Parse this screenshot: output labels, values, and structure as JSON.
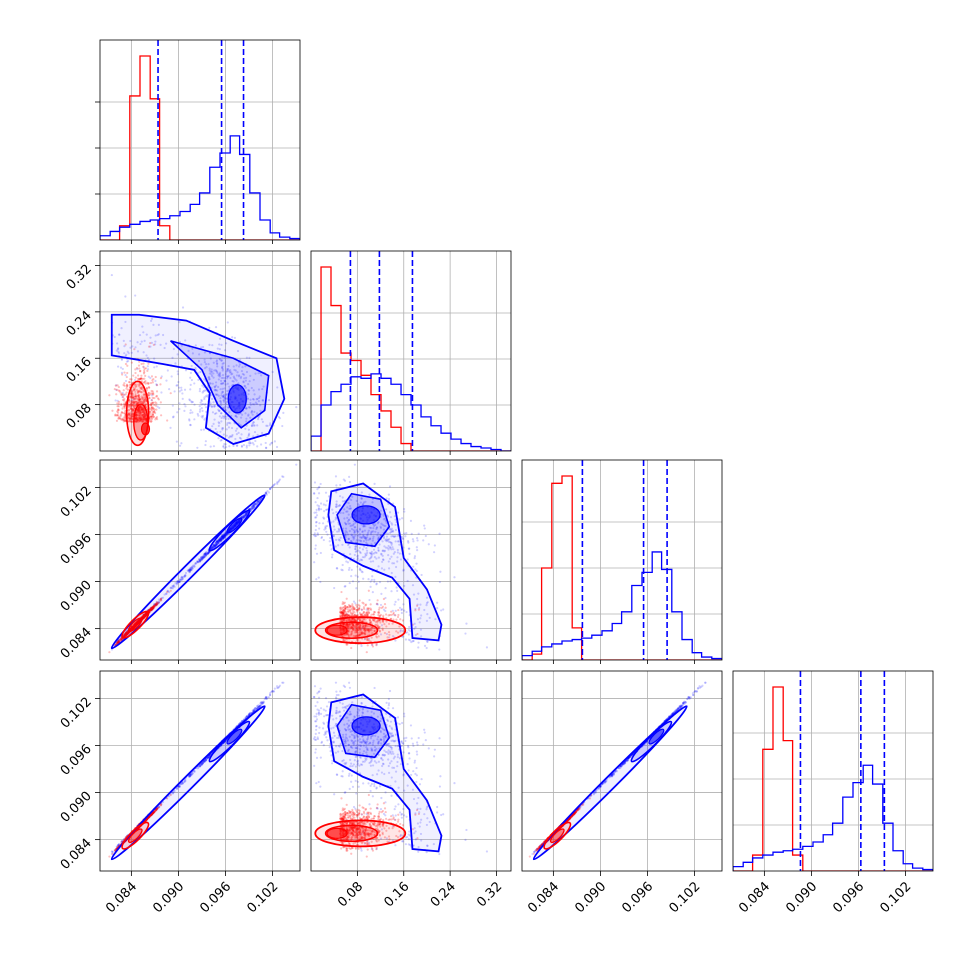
{
  "chart_data": {
    "type": "corner",
    "title": "",
    "grid": true,
    "colors": {
      "red": "#ff0000",
      "blue": "#0000ff"
    },
    "series": [
      {
        "name": "",
        "color": "#ff0000"
      },
      {
        "name": "",
        "color": "#0000ff"
      }
    ],
    "axes": [
      {
        "label": "",
        "range": [
          0.08,
          0.1055
        ],
        "ticks": [
          0.084,
          0.09,
          0.096,
          0.102
        ],
        "tick_labels": [
          "0.084",
          "0.090",
          "0.096",
          "0.102"
        ]
      },
      {
        "label": "",
        "range": [
          0.0,
          0.345
        ],
        "ticks": [
          0.08,
          0.16,
          0.24,
          0.32
        ],
        "tick_labels": [
          "0.08",
          "0.16",
          "0.24",
          "0.32"
        ]
      },
      {
        "label": "",
        "range": [
          0.08,
          0.1055
        ],
        "ticks": [
          0.084,
          0.09,
          0.096,
          0.102
        ],
        "tick_labels": [
          "0.084",
          "0.090",
          "0.096",
          "0.102"
        ]
      },
      {
        "label": "",
        "range": [
          0.08,
          0.1055
        ],
        "ticks": [
          0.084,
          0.09,
          0.096,
          0.102
        ],
        "tick_labels": [
          "0.084",
          "0.090",
          "0.096",
          "0.102"
        ]
      }
    ],
    "quantiles_blue": [
      [
        0.0874,
        0.0955,
        0.0983
      ],
      [
        0.068,
        0.118,
        0.175
      ],
      [
        0.0877,
        0.0955,
        0.0985
      ],
      [
        0.0886,
        0.0963,
        0.0993
      ]
    ],
    "histograms": [
      {
        "bin_edges": [
          0.08,
          0.0813,
          0.0825,
          0.0838,
          0.0851,
          0.0864,
          0.0876,
          0.0889,
          0.0902,
          0.0915,
          0.0927,
          0.094,
          0.0953,
          0.0966,
          0.0978,
          0.0991,
          0.1004,
          0.1017,
          0.1029,
          0.1042,
          0.1055
        ],
        "red": [
          0,
          0,
          10,
          101,
          129,
          99,
          10,
          0,
          0,
          0,
          0,
          0,
          0,
          0,
          0,
          0,
          0,
          0,
          0,
          0
        ],
        "blue": [
          3,
          6,
          9,
          11,
          13,
          14,
          15,
          17,
          20,
          25,
          33,
          51,
          61,
          73,
          60,
          33,
          14,
          5,
          2,
          1
        ]
      },
      {
        "bin_edges": [
          0.0,
          0.0173,
          0.0345,
          0.0518,
          0.069,
          0.0863,
          0.1035,
          0.1208,
          0.138,
          0.1553,
          0.1725,
          0.1898,
          0.207,
          0.2243,
          0.2415,
          0.2588,
          0.276,
          0.2933,
          0.3105,
          0.3278,
          0.345
        ],
        "red": [
          0,
          124,
          98,
          66,
          61,
          51,
          38,
          27,
          16,
          5,
          0,
          0,
          0,
          0,
          0,
          0,
          0,
          0,
          0,
          0
        ],
        "blue": [
          10,
          31,
          40,
          45,
          50,
          49,
          52,
          49,
          45,
          38,
          31,
          23,
          17,
          12,
          8,
          5,
          3,
          2,
          1,
          0
        ]
      },
      {
        "bin_edges": [
          0.08,
          0.0813,
          0.0825,
          0.0838,
          0.0851,
          0.0864,
          0.0876,
          0.0889,
          0.0902,
          0.0915,
          0.0927,
          0.094,
          0.0953,
          0.0966,
          0.0978,
          0.0991,
          0.1004,
          0.1017,
          0.1029,
          0.1042,
          0.1055
        ],
        "red": [
          0,
          4,
          63,
          121,
          126,
          22,
          0,
          0,
          0,
          0,
          0,
          0,
          0,
          0,
          0,
          0,
          0,
          0,
          0,
          0
        ],
        "blue": [
          3,
          6,
          9,
          11,
          13,
          14,
          15,
          17,
          20,
          25,
          33,
          51,
          60,
          74,
          62,
          33,
          14,
          5,
          2,
          1
        ]
      },
      {
        "bin_edges": [
          0.08,
          0.0813,
          0.0825,
          0.0838,
          0.0851,
          0.0864,
          0.0876,
          0.0889,
          0.0902,
          0.0915,
          0.0927,
          0.094,
          0.0953,
          0.0966,
          0.0978,
          0.0991,
          0.1004,
          0.1017,
          0.1029,
          0.1042,
          0.1055
        ],
        "red": [
          0,
          0,
          11,
          84,
          127,
          90,
          11,
          0,
          0,
          0,
          0,
          0,
          0,
          0,
          0,
          0,
          0,
          0,
          0,
          0
        ],
        "blue": [
          3,
          6,
          9,
          11,
          13,
          14,
          15,
          17,
          20,
          25,
          33,
          51,
          61,
          73,
          60,
          33,
          14,
          5,
          2,
          1
        ]
      }
    ]
  }
}
